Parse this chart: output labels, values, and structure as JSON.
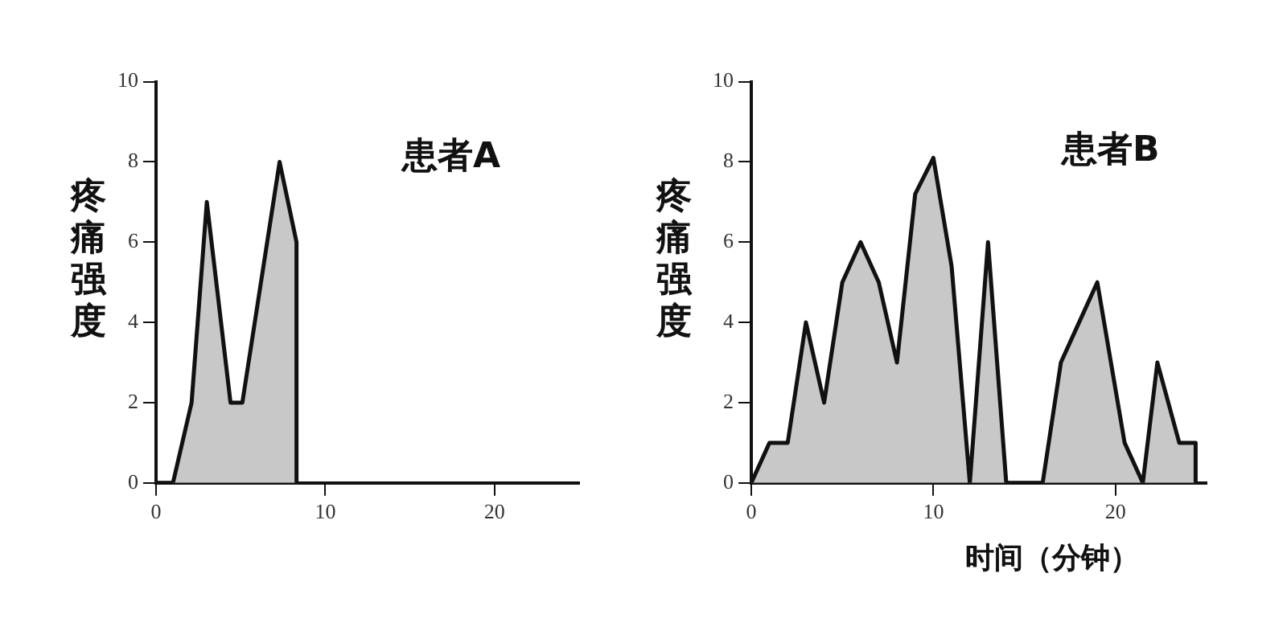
{
  "chart_data": [
    {
      "type": "area",
      "title": "患者A",
      "ylabel": "疼痛强度",
      "color": "#c8c8c8",
      "x": [
        0,
        1,
        2.1,
        3,
        4.4,
        5.1,
        7.3,
        8.3,
        8.3
      ],
      "values": [
        0,
        0,
        2,
        7,
        2,
        2,
        8,
        6,
        0
      ],
      "xlim": [
        0,
        25
      ],
      "xticks": [
        0,
        10,
        20
      ],
      "ylim": [
        0,
        10
      ],
      "yticks": [
        0,
        2,
        4,
        6,
        8,
        10
      ],
      "grid": false,
      "marker": "none"
    },
    {
      "type": "area",
      "title": "患者B",
      "ylabel": "疼痛强度",
      "xlabel": "时间（分钟）",
      "color": "#c8c8c8",
      "x": [
        0,
        1,
        2,
        3,
        4,
        5,
        6,
        7,
        8,
        9,
        10,
        11,
        12,
        13,
        14,
        16,
        17,
        18,
        19,
        20.5,
        21.5,
        22.3,
        23.5,
        24.4,
        24.4
      ],
      "values": [
        0,
        1,
        1,
        4,
        2,
        5,
        6,
        5,
        3,
        7.2,
        8.1,
        5.4,
        0,
        6,
        0,
        0,
        3,
        4,
        5,
        1,
        0,
        3,
        1,
        1,
        0
      ],
      "xlim": [
        0,
        25
      ],
      "xticks": [
        0,
        10,
        20
      ],
      "ylim": [
        0,
        10
      ],
      "yticks": [
        0,
        2,
        4,
        6,
        8,
        10
      ],
      "grid": false,
      "marker": "none"
    }
  ]
}
